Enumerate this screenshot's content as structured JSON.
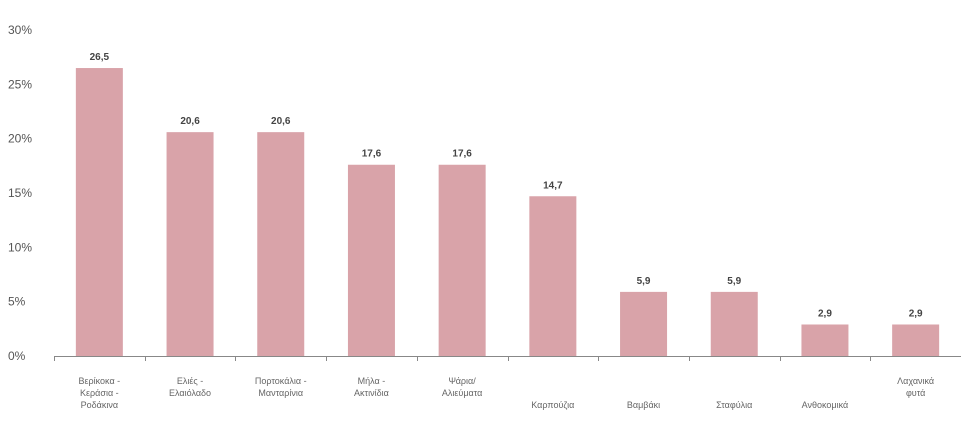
{
  "chart_data": {
    "type": "bar",
    "title": "",
    "xlabel": "",
    "ylabel": "",
    "ylim": [
      0,
      30
    ],
    "yticks": [
      0,
      5,
      10,
      15,
      20,
      25,
      30
    ],
    "ytick_suffix": "%",
    "grid": false,
    "bar_color": "#d9a3a9",
    "categories": [
      "Βερίκοκα - Κεράσια - Ροδάκινα",
      "Ελιές - Ελαιόλαδο",
      "Πορτοκάλια - Μανταρίνια",
      "Μήλα - Ακτινίδια",
      "Ψάρια/ Αλιεύματα",
      "Καρπούζια",
      "Βαμβάκι",
      "Σταφύλια",
      "Ανθοκομικά",
      "Λαχανικά φυτά"
    ],
    "values": [
      26.5,
      20.6,
      20.6,
      17.6,
      17.6,
      14.7,
      5.9,
      5.9,
      2.9,
      2.9
    ],
    "value_labels": [
      "26,5",
      "20,6",
      "20,6",
      "17,6",
      "17,6",
      "14,7",
      "5,9",
      "5,9",
      "2,9",
      "2,9"
    ]
  }
}
